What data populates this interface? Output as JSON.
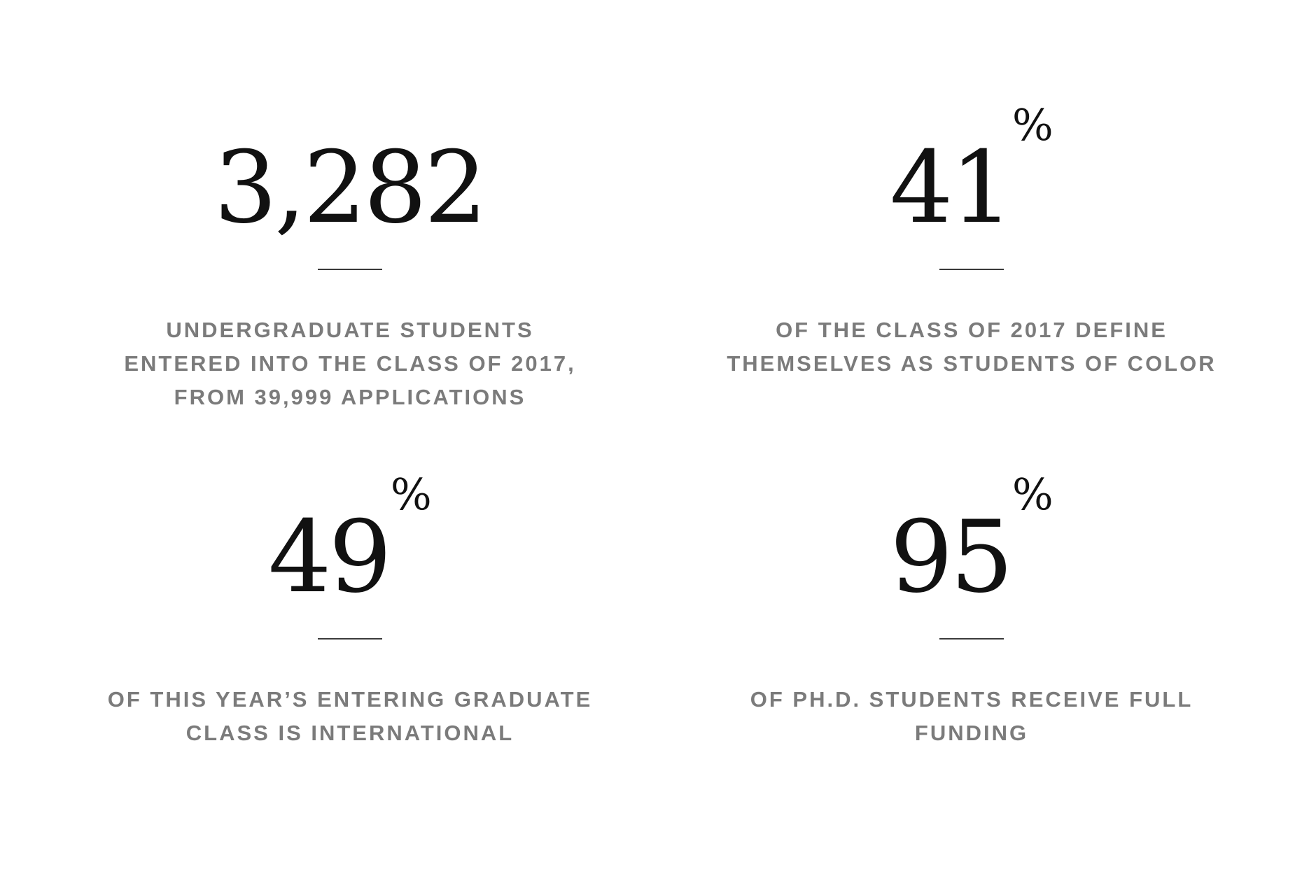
{
  "stats": [
    {
      "figure": "3,282",
      "suffix": "",
      "caption_lines": [
        "UNDERGRADUATE STUDENTS",
        "ENTERED INTO THE CLASS OF 2017,",
        "FROM 39,999 APPLICATIONS"
      ]
    },
    {
      "figure": "41",
      "suffix": "%",
      "caption_lines": [
        "OF THE CLASS OF 2017 DEFINE",
        "THEMSELVES AS STUDENTS OF COLOR"
      ]
    },
    {
      "figure": "49",
      "suffix": "%",
      "caption_lines": [
        "OF THIS YEAR’S ENTERING GRADUATE",
        "CLASS IS INTERNATIONAL"
      ]
    },
    {
      "figure": "95",
      "suffix": "%",
      "caption_lines": [
        "OF PH.D. STUDENTS RECEIVE FULL",
        "FUNDING"
      ]
    }
  ],
  "colors": {
    "figure": "#111111",
    "caption": "#7b7b7b",
    "rule": "#3a3a3a",
    "background": "#ffffff"
  }
}
